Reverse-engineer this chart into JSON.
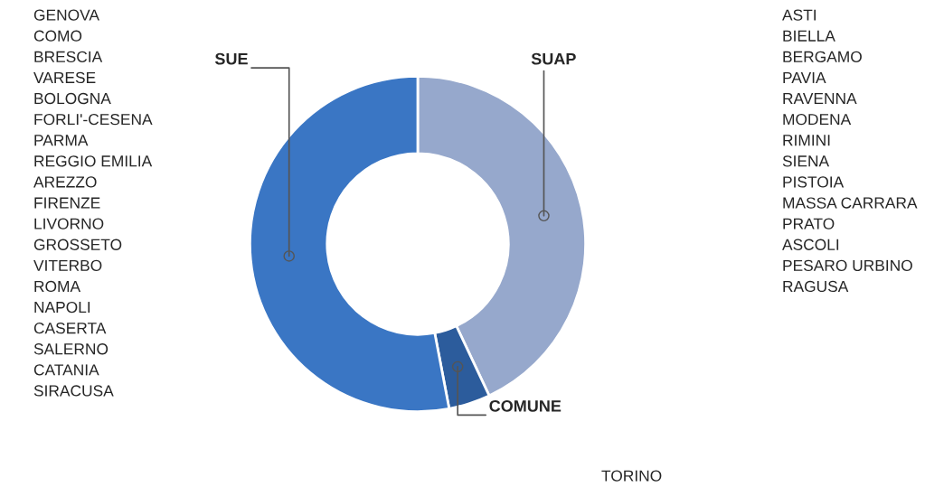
{
  "chart_data": {
    "type": "donut",
    "categories": [
      "SUAP",
      "COMUNE",
      "SUE"
    ],
    "values": [
      43,
      4,
      53
    ],
    "colors": [
      "#96a8cc",
      "#2c5c9c",
      "#3a76c4"
    ],
    "annotations": [
      "GENOVA\nCOMO\nBRESCIA\nVARESE\nBOLOGNA\nFORLI'-CESENA\nPARMA\nREGGIO EMILIA\nAREZZO\nFIRENZE\nLIVORNO\nGROSSETO\nVITERBO\nROMA\nNAPOLI\nCASERTA\nSALERNO\nCATANIA\nSIRACUSA",
      "ASTI\nBIELLA\nBERGAMO\nPAVIA\nRAVENNA\nMODENA\nRIMINI\nSIENA\nPISTOIA\nMASSA CARRARA\nPRATO\nASCOLI\nPESARO URBINO\nRAGUSA",
      "TORINO"
    ]
  }
}
